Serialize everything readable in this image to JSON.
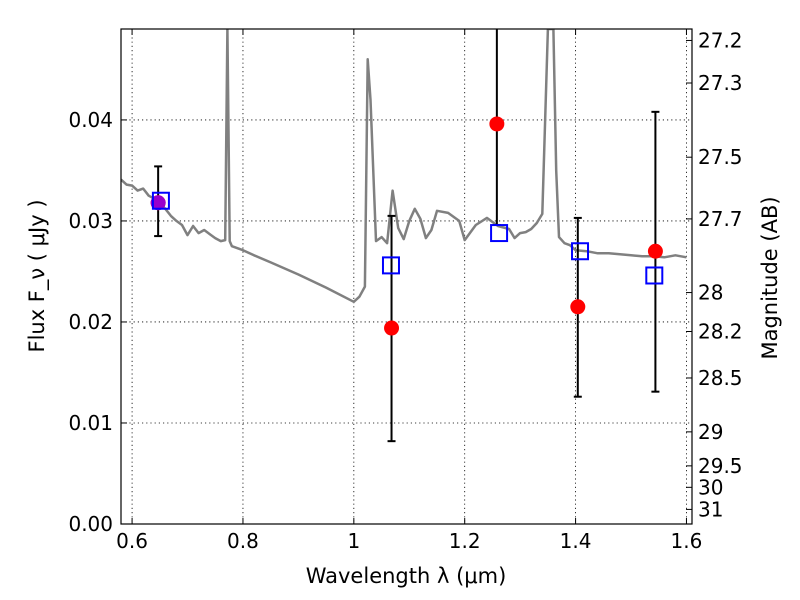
{
  "chart_data": {
    "type": "scatter",
    "xlabel": "Wavelength  λ (μm)",
    "ylabel": "Flux  F_ν  ( μJy )",
    "ylabel_right": "Magnitude (AB)",
    "xlim": [
      0.58,
      1.61
    ],
    "ylim": [
      0.0,
      0.049
    ],
    "grid": true,
    "x_ticks": [
      0.6,
      0.8,
      1.0,
      1.2,
      1.4,
      1.6
    ],
    "x_tick_labels": [
      "0.6",
      "0.8",
      "1",
      "1.2",
      "1.4",
      "1.6"
    ],
    "y_ticks": [
      0.0,
      0.01,
      0.02,
      0.03,
      0.04
    ],
    "y_tick_labels": [
      "0.00",
      "0.01",
      "0.02",
      "0.03",
      "0.04"
    ],
    "right_ticks": [
      27.2,
      27.3,
      27.5,
      27.7,
      28,
      28.2,
      28.5,
      29,
      29.5,
      30,
      31
    ],
    "right_tick_labels": [
      "27.2",
      "27.3",
      "27.5",
      "27.7",
      "28",
      "28.2",
      "28.5",
      "29",
      "29.5",
      "30",
      "31"
    ],
    "series": [
      {
        "kind": "line",
        "color": "#808080",
        "x": [
          0.58,
          0.59,
          0.6,
          0.61,
          0.62,
          0.63,
          0.64,
          0.65,
          0.66,
          0.67,
          0.68,
          0.69,
          0.7,
          0.71,
          0.72,
          0.73,
          0.74,
          0.75,
          0.76,
          0.768,
          0.772,
          0.776,
          0.78,
          0.8,
          0.82,
          0.85,
          0.9,
          0.95,
          1.0,
          1.01,
          1.02,
          1.025,
          1.03,
          1.04,
          1.05,
          1.06,
          1.07,
          1.08,
          1.09,
          1.1,
          1.11,
          1.12,
          1.13,
          1.14,
          1.15,
          1.17,
          1.19,
          1.2,
          1.22,
          1.24,
          1.26,
          1.28,
          1.29,
          1.3,
          1.31,
          1.32,
          1.33,
          1.34,
          1.35,
          1.355,
          1.36,
          1.365,
          1.37,
          1.38,
          1.39,
          1.4,
          1.42,
          1.44,
          1.46,
          1.48,
          1.5,
          1.52,
          1.54,
          1.56,
          1.58,
          1.6
        ],
        "y": [
          0.0341,
          0.0336,
          0.0335,
          0.033,
          0.0332,
          0.0325,
          0.0322,
          0.0318,
          0.0312,
          0.0305,
          0.03,
          0.0296,
          0.0286,
          0.0295,
          0.0288,
          0.0291,
          0.0287,
          0.0283,
          0.028,
          0.0281,
          0.049,
          0.028,
          0.0275,
          0.0271,
          0.0266,
          0.0259,
          0.0247,
          0.0234,
          0.022,
          0.0225,
          0.0235,
          0.046,
          0.042,
          0.028,
          0.0284,
          0.0278,
          0.033,
          0.0293,
          0.0282,
          0.03,
          0.0312,
          0.0302,
          0.0283,
          0.0291,
          0.031,
          0.0308,
          0.03,
          0.0281,
          0.0296,
          0.0303,
          0.0295,
          0.0292,
          0.0283,
          0.0288,
          0.0289,
          0.0292,
          0.0298,
          0.0307,
          0.049,
          0.049,
          0.049,
          0.035,
          0.0284,
          0.0278,
          0.0276,
          0.0271,
          0.027,
          0.0268,
          0.0268,
          0.0267,
          0.0266,
          0.0265,
          0.0265,
          0.0264,
          0.0266,
          0.0264
        ]
      },
      {
        "kind": "errorbar",
        "color": "#000000",
        "x": [
          0.647,
          1.068,
          1.258,
          1.404,
          1.544
        ],
        "y": [
          0.0318,
          0.0194,
          0.0396,
          0.0215,
          0.027
        ],
        "yerr_low": [
          0.0285,
          0.0082,
          0.0296,
          0.0126,
          0.0131
        ],
        "yerr_high": [
          0.0354,
          0.0305,
          0.0495,
          0.0303,
          0.0408
        ]
      },
      {
        "kind": "markers",
        "marker": "circle",
        "color": "#ff0000",
        "x": [
          0.647,
          1.068,
          1.258,
          1.404,
          1.544
        ],
        "y": [
          0.0318,
          0.0194,
          0.0396,
          0.0215,
          0.027
        ]
      },
      {
        "kind": "markers",
        "marker": "circle",
        "color": "#9900cc",
        "x": [
          0.647
        ],
        "y": [
          0.0318
        ]
      },
      {
        "kind": "markers",
        "marker": "open-square",
        "color": "#0000ff",
        "x": [
          0.652,
          1.067,
          1.262,
          1.408,
          1.542
        ],
        "y": [
          0.032,
          0.0256,
          0.0288,
          0.027,
          0.0246
        ]
      }
    ]
  }
}
